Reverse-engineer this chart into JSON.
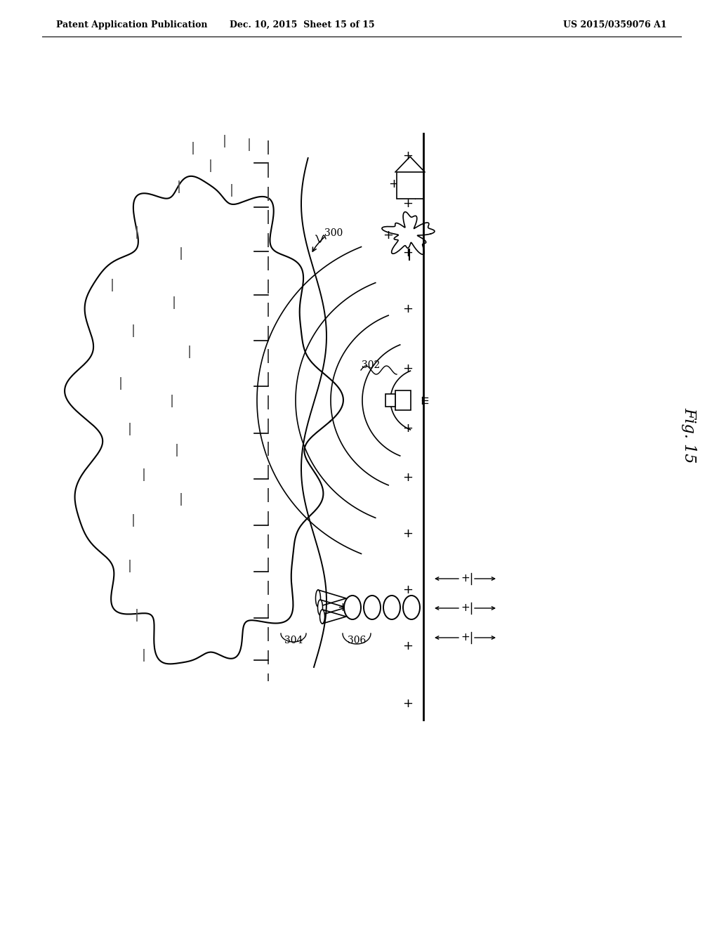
{
  "bg_color": "#ffffff",
  "line_color": "#000000",
  "fig_label": "Fig. 15",
  "patent_header": {
    "left": "Patent Application Publication",
    "center": "Dec. 10, 2015  Sheet 15 of 15",
    "right": "US 2015/0359076 A1"
  }
}
